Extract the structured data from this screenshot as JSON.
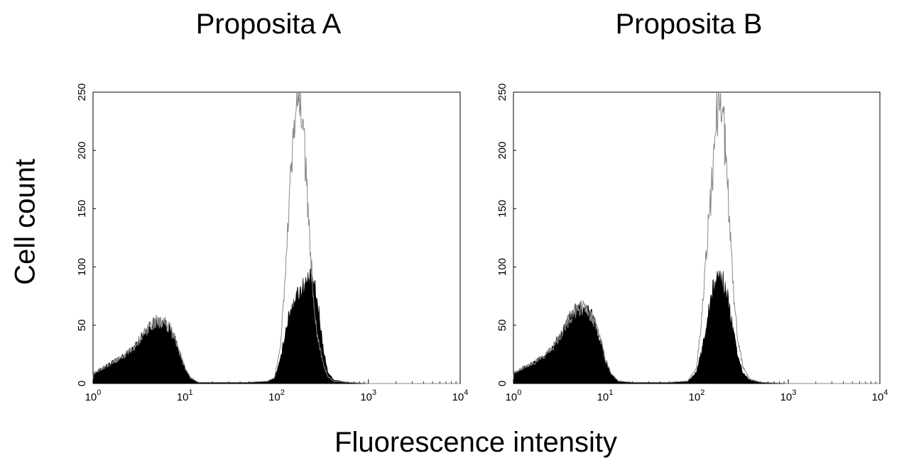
{
  "figure": {
    "ylabel": "Cell count",
    "xlabel": "Fluorescence intensity"
  },
  "chart_data": [
    {
      "type": "histogram-overlay",
      "title": "Proposita A",
      "x_scale": "log",
      "xlim": [
        1,
        10000
      ],
      "ylim": [
        0,
        250
      ],
      "x_ticks": [
        {
          "base": "10",
          "exp": "0"
        },
        {
          "base": "10",
          "exp": "1"
        },
        {
          "base": "10",
          "exp": "2"
        },
        {
          "base": "10",
          "exp": "3"
        },
        {
          "base": "10",
          "exp": "4"
        }
      ],
      "y_ticks": [
        "0",
        "50",
        "100",
        "150",
        "200",
        "250"
      ],
      "series": [
        {
          "style": "filled-black",
          "points": [
            [
              1.0,
              8
            ],
            [
              1.3,
              14
            ],
            [
              1.7,
              19
            ],
            [
              2.2,
              24
            ],
            [
              2.8,
              31
            ],
            [
              3.5,
              42
            ],
            [
              4.2,
              50
            ],
            [
              5.0,
              53
            ],
            [
              6.0,
              52
            ],
            [
              7.0,
              46
            ],
            [
              8.0,
              36
            ],
            [
              9.0,
              24
            ],
            [
              10,
              14
            ],
            [
              11.5,
              5
            ],
            [
              14,
              1
            ],
            [
              20,
              1
            ],
            [
              50,
              1
            ],
            [
              80,
              2
            ],
            [
              95,
              5
            ],
            [
              110,
              20
            ],
            [
              125,
              45
            ],
            [
              140,
              62
            ],
            [
              160,
              74
            ],
            [
              180,
              80
            ],
            [
              200,
              84
            ],
            [
              220,
              88
            ],
            [
              240,
              90
            ],
            [
              260,
              82
            ],
            [
              290,
              60
            ],
            [
              320,
              32
            ],
            [
              360,
              10
            ],
            [
              420,
              3
            ],
            [
              600,
              1
            ],
            [
              1000,
              0
            ],
            [
              3000,
              0
            ],
            [
              10000,
              0
            ]
          ]
        },
        {
          "style": "outline-gray",
          "points": [
            [
              1.0,
              8
            ],
            [
              1.3,
              14
            ],
            [
              1.7,
              19
            ],
            [
              2.2,
              24
            ],
            [
              2.8,
              31
            ],
            [
              3.5,
              42
            ],
            [
              4.2,
              50
            ],
            [
              5.0,
              53
            ],
            [
              6.0,
              52
            ],
            [
              7.0,
              46
            ],
            [
              8.0,
              36
            ],
            [
              9.0,
              24
            ],
            [
              10,
              14
            ],
            [
              11.5,
              5
            ],
            [
              14,
              1
            ],
            [
              20,
              1
            ],
            [
              50,
              1
            ],
            [
              80,
              2
            ],
            [
              95,
              5
            ],
            [
              110,
              32
            ],
            [
              125,
              95
            ],
            [
              140,
              165
            ],
            [
              155,
              215
            ],
            [
              170,
              245
            ],
            [
              185,
              238
            ],
            [
              200,
              210
            ],
            [
              215,
              160
            ],
            [
              235,
              110
            ],
            [
              255,
              70
            ],
            [
              280,
              40
            ],
            [
              320,
              18
            ],
            [
              360,
              6
            ],
            [
              420,
              2
            ],
            [
              600,
              1
            ],
            [
              1000,
              0
            ],
            [
              3000,
              0
            ],
            [
              10000,
              0
            ]
          ]
        }
      ]
    },
    {
      "type": "histogram-overlay",
      "title": "Proposita B",
      "x_scale": "log",
      "xlim": [
        1,
        10000
      ],
      "ylim": [
        0,
        250
      ],
      "x_ticks": [
        {
          "base": "10",
          "exp": "0"
        },
        {
          "base": "10",
          "exp": "1"
        },
        {
          "base": "10",
          "exp": "2"
        },
        {
          "base": "10",
          "exp": "3"
        },
        {
          "base": "10",
          "exp": "4"
        }
      ],
      "y_ticks": [
        "0",
        "50",
        "100",
        "150",
        "200",
        "250"
      ],
      "series": [
        {
          "style": "filled-black",
          "points": [
            [
              1.0,
              9
            ],
            [
              1.3,
              14
            ],
            [
              1.7,
              18
            ],
            [
              2.2,
              24
            ],
            [
              2.8,
              33
            ],
            [
              3.5,
              46
            ],
            [
              4.2,
              57
            ],
            [
              5.0,
              64
            ],
            [
              6.0,
              65
            ],
            [
              7.0,
              60
            ],
            [
              8.0,
              49
            ],
            [
              9.0,
              36
            ],
            [
              10,
              22
            ],
            [
              11.5,
              9
            ],
            [
              14,
              2
            ],
            [
              20,
              1
            ],
            [
              50,
              1
            ],
            [
              80,
              2
            ],
            [
              100,
              10
            ],
            [
              115,
              30
            ],
            [
              130,
              55
            ],
            [
              150,
              80
            ],
            [
              170,
              92
            ],
            [
              190,
              90
            ],
            [
              210,
              80
            ],
            [
              230,
              64
            ],
            [
              250,
              45
            ],
            [
              280,
              24
            ],
            [
              320,
              9
            ],
            [
              380,
              3
            ],
            [
              500,
              1
            ],
            [
              1000,
              0
            ],
            [
              3000,
              0
            ],
            [
              10000,
              0
            ]
          ]
        },
        {
          "style": "outline-gray",
          "points": [
            [
              1.0,
              9
            ],
            [
              1.3,
              14
            ],
            [
              1.7,
              18
            ],
            [
              2.2,
              24
            ],
            [
              2.8,
              33
            ],
            [
              3.5,
              46
            ],
            [
              4.2,
              57
            ],
            [
              5.0,
              64
            ],
            [
              6.0,
              65
            ],
            [
              7.0,
              60
            ],
            [
              8.0,
              49
            ],
            [
              9.0,
              36
            ],
            [
              10,
              22
            ],
            [
              11.5,
              9
            ],
            [
              14,
              2
            ],
            [
              20,
              1
            ],
            [
              50,
              1
            ],
            [
              80,
              2
            ],
            [
              100,
              14
            ],
            [
              115,
              60
            ],
            [
              130,
              120
            ],
            [
              150,
              185
            ],
            [
              165,
              232
            ],
            [
              180,
              250
            ],
            [
              195,
              228
            ],
            [
              215,
              175
            ],
            [
              235,
              120
            ],
            [
              255,
              75
            ],
            [
              280,
              40
            ],
            [
              320,
              14
            ],
            [
              380,
              4
            ],
            [
              500,
              1
            ],
            [
              1000,
              0
            ],
            [
              3000,
              0
            ],
            [
              10000,
              0
            ]
          ]
        }
      ]
    }
  ]
}
